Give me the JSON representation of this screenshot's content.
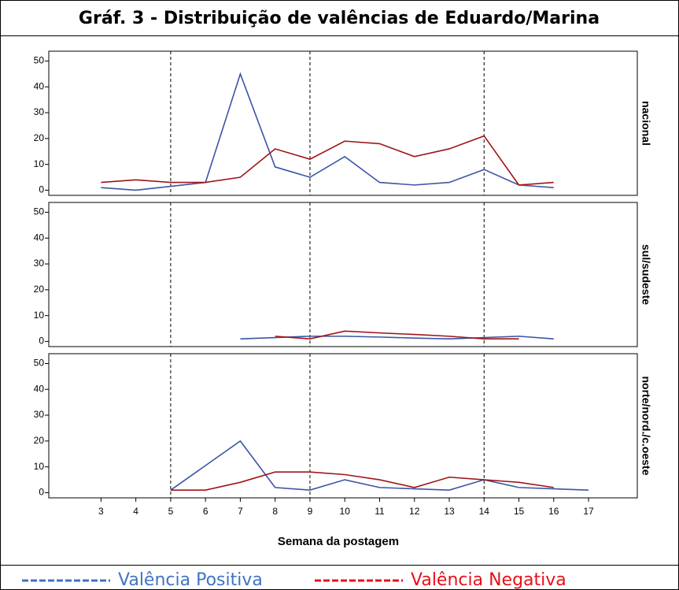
{
  "chart_data": {
    "type": "line",
    "title": "Gráf. 3 - Distribuição de valências de Eduardo/Marina",
    "xlabel": "Semana da postagem",
    "xlim": [
      1.5,
      18.4
    ],
    "xticks": [
      3,
      4,
      5,
      6,
      7,
      8,
      9,
      10,
      11,
      12,
      13,
      14,
      15,
      16,
      17
    ],
    "ylim": [
      -2,
      53.8
    ],
    "yticks": [
      0,
      10,
      20,
      30,
      40,
      50
    ],
    "vlines": [
      5,
      9,
      14
    ],
    "panel_labels": [
      "nacional",
      "sul/sudeste",
      "norte/nord./c.oeste"
    ],
    "legend_colors": [
      "#3f74c4",
      "#e8101a"
    ],
    "series": [
      {
        "name": "Valência Positiva",
        "color": "#3a55a4",
        "x": [
          [
            3,
            4,
            5,
            6,
            7,
            8,
            9,
            10,
            11,
            12,
            13,
            14,
            15,
            16
          ],
          [
            7,
            8,
            9,
            10,
            11,
            12,
            13,
            14,
            15,
            16
          ],
          [
            5,
            7,
            8,
            9,
            10,
            11,
            12,
            13,
            14,
            15,
            16,
            17
          ]
        ],
        "values": [
          [
            1,
            0,
            1.5,
            3,
            45,
            9,
            5,
            13,
            3,
            2,
            3,
            8,
            2,
            1
          ],
          [
            1,
            1.5,
            2,
            2,
            1.7,
            1.3,
            1,
            1.5,
            2,
            1
          ],
          [
            1,
            20,
            2,
            1,
            5,
            2,
            1.5,
            1,
            5,
            2,
            1.5,
            1
          ]
        ]
      },
      {
        "name": "Valência Negativa",
        "color": "#a01418",
        "x": [
          [
            3,
            4,
            5,
            6,
            7,
            8,
            9,
            10,
            11,
            12,
            13,
            14,
            15,
            16
          ],
          [
            8,
            9,
            10,
            11,
            12,
            13,
            14,
            15
          ],
          [
            5,
            6,
            7,
            8,
            9,
            10,
            11,
            12,
            13,
            14,
            15,
            16
          ]
        ],
        "values": [
          [
            3,
            4,
            3,
            3,
            5,
            16,
            12,
            19,
            18,
            13,
            16,
            21,
            2,
            3
          ],
          [
            2,
            1,
            4,
            3.3,
            2.7,
            2,
            1,
            1
          ],
          [
            1,
            1,
            4,
            8,
            8,
            7,
            5,
            2,
            6,
            5,
            4,
            2
          ]
        ]
      }
    ]
  }
}
